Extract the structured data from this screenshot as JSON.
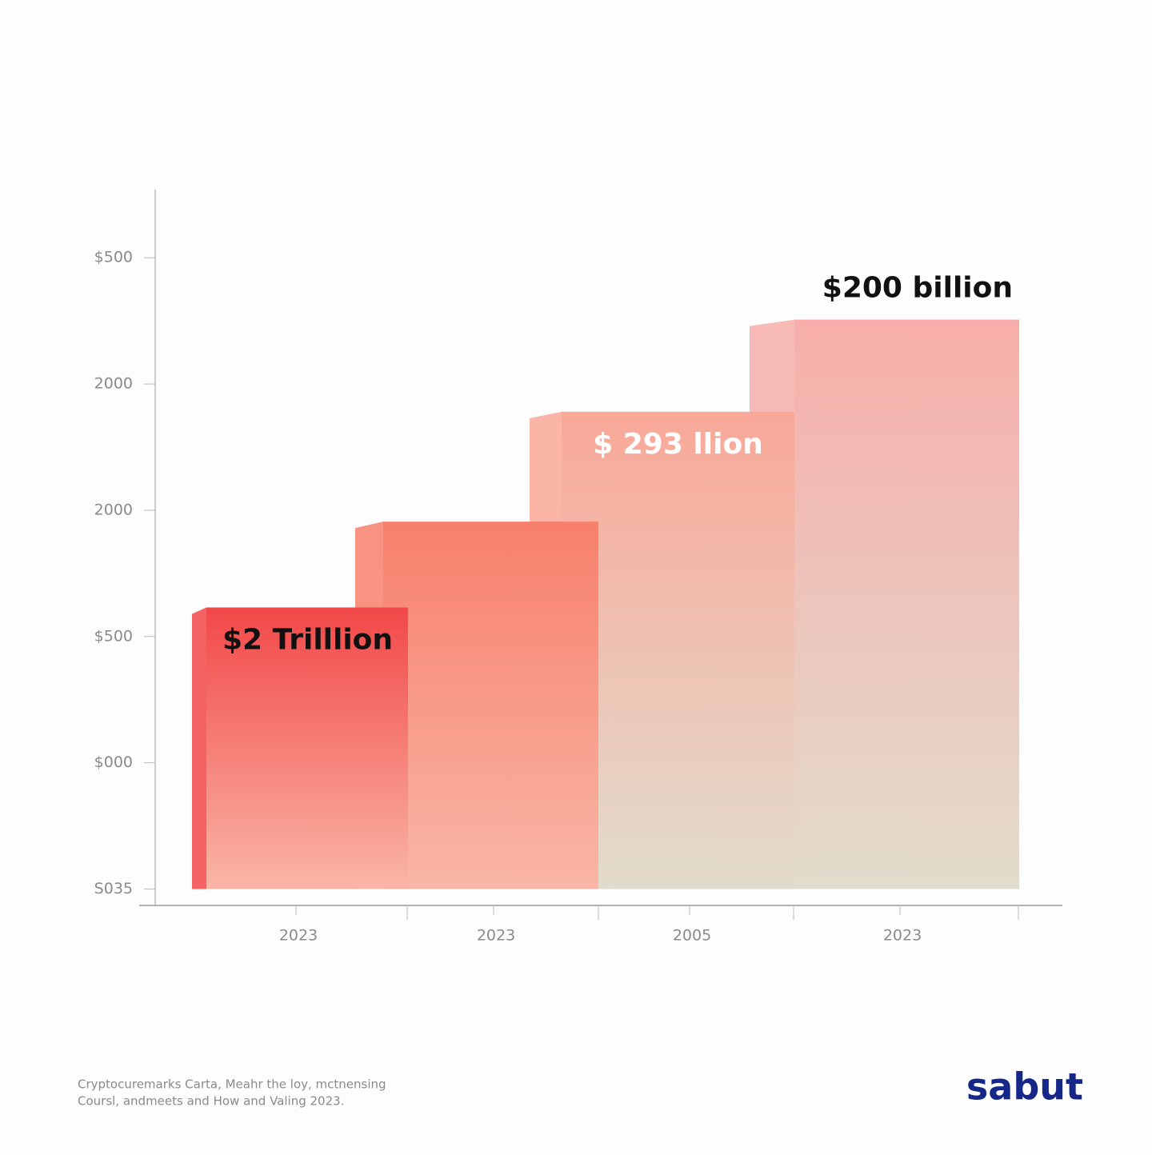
{
  "chart_data": {
    "type": "bar",
    "categories": [
      "2023",
      "2023",
      "2005",
      "2023"
    ],
    "values": [
      2.23,
      2.91,
      3.78,
      4.51
    ],
    "colors": [
      "#f24848",
      "#f7806c",
      "#f9a898",
      "#f7aeaa"
    ],
    "ylim": [
      -0.13,
      5.54
    ],
    "yticks": [
      {
        "value": 0,
        "label": "S035"
      },
      {
        "value": 1,
        "label": "$000"
      },
      {
        "value": 2,
        "label": "$500"
      },
      {
        "value": 3,
        "label": "2000"
      },
      {
        "value": 4,
        "label": "2000"
      },
      {
        "value": 5,
        "label": "$500"
      }
    ],
    "annotations": [
      {
        "text": "$2 Trilllion",
        "category": 0,
        "color": "#111111"
      },
      {
        "text": "$ 293 llion",
        "category": 2,
        "color": "#ffffff"
      },
      {
        "text": "$200 billion",
        "category": 3,
        "color": "#111111"
      }
    ],
    "source": [
      "Cryptocuremarks Carta, Meahr the loy, mctnensing",
      "Coursl, andmeets and How and Valing 2023."
    ],
    "logo": "sabut"
  }
}
